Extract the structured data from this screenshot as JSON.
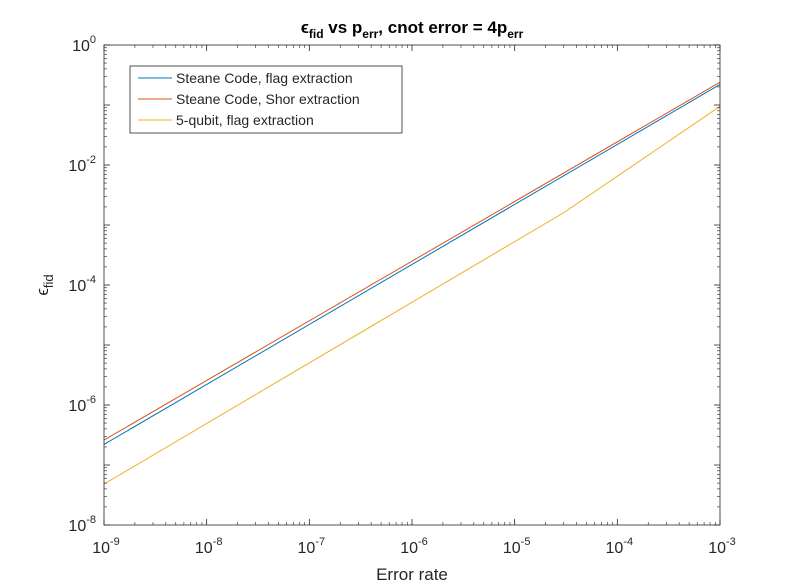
{
  "chart_data": {
    "type": "line",
    "title": {
      "parts": [
        {
          "text": "ϵ",
          "sub": "fid"
        },
        {
          "text": " vs p",
          "sub": "err"
        },
        {
          "text": ", cnot error = 4p",
          "sub": "err"
        }
      ]
    },
    "xlabel": "Error rate",
    "ylabel": {
      "text": "ϵ",
      "sub": "fid"
    },
    "x_scale": "log",
    "y_scale": "log",
    "xlim": [
      1e-09,
      0.001
    ],
    "ylim": [
      1e-08,
      1
    ],
    "x_ticks": [
      {
        "base": "10",
        "exp": "-9"
      },
      {
        "base": "10",
        "exp": "-8"
      },
      {
        "base": "10",
        "exp": "-7"
      },
      {
        "base": "10",
        "exp": "-6"
      },
      {
        "base": "10",
        "exp": "-5"
      },
      {
        "base": "10",
        "exp": "-4"
      },
      {
        "base": "10",
        "exp": "-3"
      }
    ],
    "y_ticks": [
      {
        "base": "10",
        "exp": "-8"
      },
      {
        "base": "10",
        "exp": "-6"
      },
      {
        "base": "10",
        "exp": "-4"
      },
      {
        "base": "10",
        "exp": "-2"
      },
      {
        "base": "10",
        "exp": "0"
      }
    ],
    "grid": false,
    "legend_position": "top-left",
    "series": [
      {
        "name": "Steane Code, flag extraction",
        "color": "#0072BD",
        "x": [
          1e-09,
          0.001
        ],
        "y": [
          2.2e-07,
          0.22
        ]
      },
      {
        "name": "Steane Code, Shor extraction",
        "color": "#D95319",
        "x": [
          1e-09,
          0.001
        ],
        "y": [
          2.6e-07,
          0.24
        ]
      },
      {
        "name": "5-qubit, flag extraction",
        "color": "#EDB120",
        "x": [
          1e-09,
          3e-05,
          0.001
        ],
        "y": [
          4.8e-08,
          0.0016,
          0.095
        ]
      }
    ]
  }
}
